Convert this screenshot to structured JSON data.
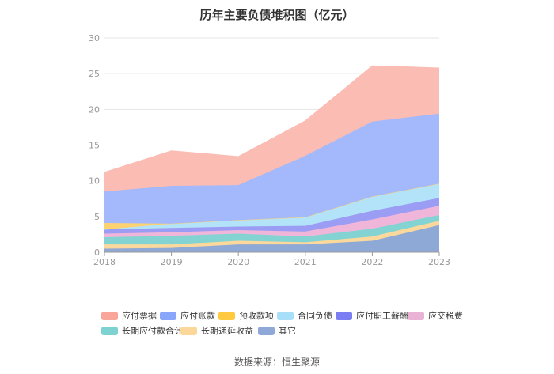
{
  "chart_data": {
    "type": "area",
    "stacked": true,
    "title": "历年主要负债堆积图（亿元）",
    "x": [
      "2018",
      "2019",
      "2020",
      "2021",
      "2022",
      "2023"
    ],
    "ylim": [
      0,
      30
    ],
    "yticks": [
      "0",
      "5",
      "10",
      "15",
      "20",
      "25",
      "30"
    ],
    "grid": true,
    "legend_position": "bottom",
    "series": [
      {
        "name": "其它",
        "color": "#8fa9d6",
        "values": [
          0.5,
          0.6,
          1.1,
          1.1,
          1.6,
          3.8
        ]
      },
      {
        "name": "长期递延收益",
        "color": "#fbd89c",
        "values": [
          0.6,
          0.5,
          0.5,
          0.3,
          0.6,
          0.6
        ]
      },
      {
        "name": "长期应付款合计",
        "color": "#83d3d3",
        "values": [
          1.0,
          1.2,
          1.0,
          0.8,
          1.1,
          0.8
        ]
      },
      {
        "name": "应交税费",
        "color": "#efb6da",
        "values": [
          0.5,
          0.5,
          0.5,
          0.7,
          1.3,
          1.3
        ]
      },
      {
        "name": "应付职工薪酬",
        "color": "#9b9cf3",
        "values": [
          0.6,
          0.6,
          0.5,
          0.8,
          1.2,
          1.1
        ]
      },
      {
        "name": "合同负债",
        "color": "#b3e3f8",
        "values": [
          0.0,
          0.6,
          0.9,
          1.2,
          2.0,
          2.0
        ]
      },
      {
        "name": "预收款项",
        "color": "#ffd271",
        "values": [
          0.9,
          0.0,
          0.0,
          0.0,
          0.0,
          0.0
        ]
      },
      {
        "name": "应付账款",
        "color": "#a3b9fb",
        "values": [
          4.4,
          5.3,
          4.9,
          8.6,
          10.5,
          9.8
        ]
      },
      {
        "name": "应付票据",
        "color": "#fbbcb4",
        "values": [
          2.7,
          4.9,
          4.0,
          4.9,
          7.8,
          6.4
        ]
      }
    ]
  },
  "legend": [
    {
      "label": "应付票据",
      "color": "#f9a59a"
    },
    {
      "label": "应付账款",
      "color": "#8aa6fa"
    },
    {
      "label": "预收款项",
      "color": "#ffc940"
    },
    {
      "label": "合同负债",
      "color": "#a8dff8"
    },
    {
      "label": "应付职工薪酬",
      "color": "#7b7ef2"
    },
    {
      "label": "应交税费",
      "color": "#eab3d6"
    },
    {
      "label": "长期应付款合计",
      "color": "#7fd2d2"
    },
    {
      "label": "长期递延收益",
      "color": "#fbd89a"
    },
    {
      "label": "其它",
      "color": "#8ea8d8"
    }
  ],
  "source": "数据来源：恒生聚源"
}
